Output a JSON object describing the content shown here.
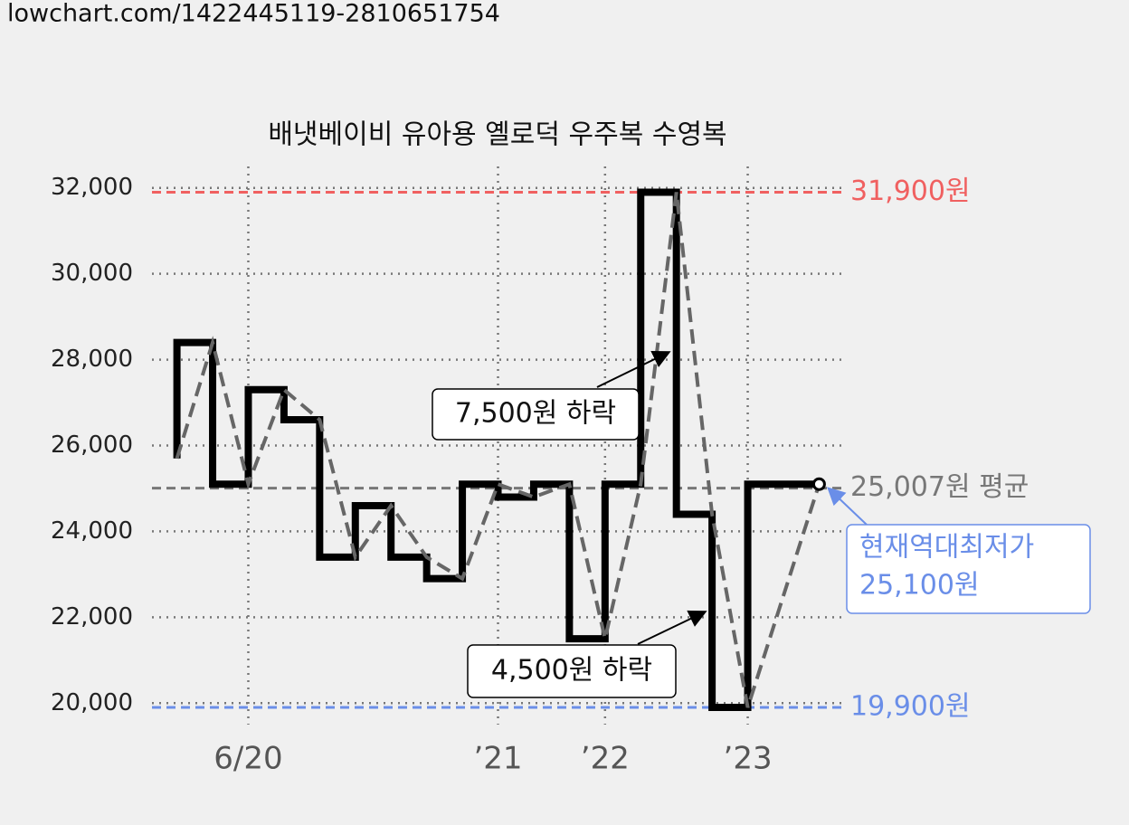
{
  "header": {
    "url": "lowchart.com/1422445119-2810651754"
  },
  "chart_data": {
    "type": "line",
    "title": "배냇베이비 유아용 옐로덕 우주복 수영복",
    "x": [
      0,
      1,
      2,
      3,
      4,
      5,
      6,
      7,
      8,
      9,
      10,
      11,
      12,
      13,
      14,
      15,
      16,
      18
    ],
    "series": [
      {
        "color": "#000000",
        "step": true,
        "dashed_overlay_color": "#666666",
        "values": [
          25700,
          28400,
          25100,
          27300,
          26600,
          23400,
          24600,
          23400,
          22900,
          25100,
          24800,
          25100,
          21500,
          25100,
          31900,
          24400,
          19900,
          25100
        ]
      }
    ],
    "xlim": [
      -0.7,
      18.75
    ],
    "xticks": [
      {
        "value": 2,
        "label": "6/20"
      },
      {
        "value": 9,
        "label": "’21"
      },
      {
        "value": 12,
        "label": "’22"
      },
      {
        "value": 16,
        "label": "’23"
      }
    ],
    "ylim": [
      19500,
      32500
    ],
    "yticks": [
      {
        "value": 20000,
        "label": "20,000"
      },
      {
        "value": 22000,
        "label": "22,000"
      },
      {
        "value": 24000,
        "label": "24,000"
      },
      {
        "value": 26000,
        "label": "26,000"
      },
      {
        "value": 28000,
        "label": "28,000"
      },
      {
        "value": 30000,
        "label": "30,000"
      },
      {
        "value": 32000,
        "label": "32,000"
      }
    ],
    "grid": true,
    "reference_lines": [
      {
        "value": 31900,
        "label": "31,900원",
        "color": "#f06060"
      },
      {
        "value": 25007,
        "label": "25,007원 평균",
        "color": "#777777"
      },
      {
        "value": 19900,
        "label": "19,900원",
        "color": "#6a8ee8"
      }
    ],
    "annotations": [
      "7,500원 하락",
      "4,500원 하락"
    ],
    "current_box": {
      "title": "현재역대최저가",
      "price": "25,100원",
      "color": "#6a8ee8"
    }
  }
}
